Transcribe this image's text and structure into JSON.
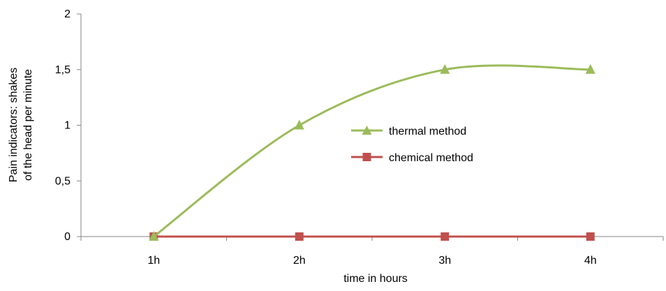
{
  "chart_data": {
    "type": "line",
    "categories": [
      "1h",
      "2h",
      "3h",
      "4h"
    ],
    "series": [
      {
        "name": "thermal method",
        "values": [
          0,
          1,
          1.5,
          1.5
        ],
        "color": "#9bbb59",
        "marker": "triangle",
        "smooth": true
      },
      {
        "name": "chemical method",
        "values": [
          0,
          0,
          0,
          0
        ],
        "color": "#c0504d",
        "marker": "square",
        "smooth": false
      }
    ],
    "yticks": [
      "0",
      "0,5",
      "1",
      "1,5",
      "2"
    ],
    "ytick_values": [
      0,
      0.5,
      1,
      1.5,
      2
    ],
    "ylim": [
      0,
      2
    ],
    "ylabel_lines": [
      "Pain indicators: shakes",
      "of the head per minute"
    ],
    "xlabel": "time in hours",
    "grid": false,
    "legend_position": "inside-center-right"
  }
}
